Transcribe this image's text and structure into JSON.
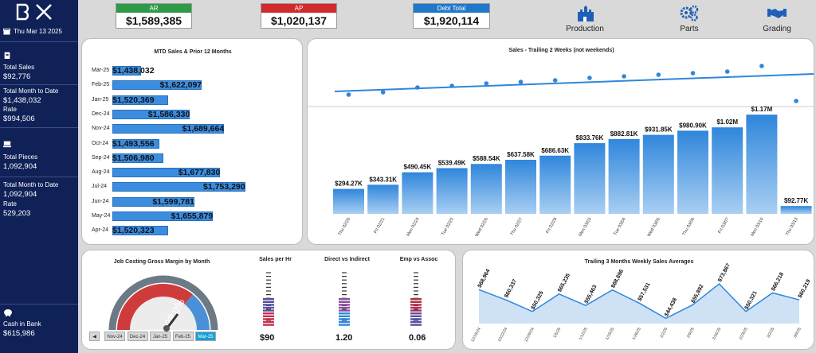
{
  "sidebar": {
    "date": "Thu Mar 13 2025",
    "total_sales_label": "Total Sales",
    "total_sales_value": "$92,776",
    "mtd_label": "Total Month to Date",
    "mtd_value": "$1,438,032",
    "rate_label": "Rate",
    "rate_value": "$994,506",
    "total_pieces_label": "Total Pieces",
    "total_pieces_value": "1,092,904",
    "pieces_mtd_label": "Total Month to Date",
    "pieces_mtd_value": "1,092,904",
    "pieces_rate_label": "Rate",
    "pieces_rate_value": "529,203",
    "cash_label": "Cash in Bank",
    "cash_value": "$615,986"
  },
  "kpis": {
    "ar_label": "AR",
    "ar_value": "$1,589,385",
    "ap_label": "AP",
    "ap_value": "$1,020,137",
    "debt_label": "Debt Total",
    "debt_value": "$1,920,114"
  },
  "nav": {
    "production": "Production",
    "parts": "Parts",
    "grading": "Grading"
  },
  "colors": {
    "sidebar": "#0f2157",
    "bar": "#3b8de0",
    "ar": "#2e9a48",
    "ap": "#d12a2a",
    "debt": "#1f78c8"
  },
  "mtd": {
    "title": "MTD Sales & Prior 12 Months",
    "rows": [
      {
        "label": "Mar-25",
        "value": 1438032,
        "text": "$1,438,032"
      },
      {
        "label": "Feb-25",
        "value": 1622097,
        "text": "$1,622,097"
      },
      {
        "label": "Jan-25",
        "value": 1520369,
        "text": "$1,520,369"
      },
      {
        "label": "Dec-24",
        "value": 1586330,
        "text": "$1,586,330"
      },
      {
        "label": "Nov-24",
        "value": 1689664,
        "text": "$1,689,664"
      },
      {
        "label": "Oct-24",
        "value": 1493556,
        "text": "$1,493,556"
      },
      {
        "label": "Sep-24",
        "value": 1506980,
        "text": "$1,506,980"
      },
      {
        "label": "Aug-24",
        "value": 1677830,
        "text": "$1,677,830"
      },
      {
        "label": "Jul-24",
        "value": 1753290,
        "text": "$1,753,290"
      },
      {
        "label": "Jun-24",
        "value": 1599781,
        "text": "$1,599,781"
      },
      {
        "label": "May-24",
        "value": 1655879,
        "text": "$1,655,879"
      },
      {
        "label": "Apr-24",
        "value": 1520323,
        "text": "$1,520,323"
      }
    ]
  },
  "trailing": {
    "title": "Sales - Trailing 2 Weeks (not weekends)",
    "labels": [
      "Thu 02/20",
      "Fri 02/21",
      "Mon 02/24",
      "Tue 02/25",
      "Wed 02/26",
      "Thu 02/27",
      "Fri 02/28",
      "Mon 03/03",
      "Tue 03/04",
      "Wed 03/05",
      "Thu 03/06",
      "Fri 03/07",
      "Mon 03/10",
      "Thu 03/13"
    ],
    "values": [
      294.27,
      343.31,
      490.45,
      539.49,
      588.54,
      637.58,
      686.63,
      833.76,
      882.81,
      931.85,
      980.9,
      1020,
      1170,
      92.77
    ],
    "texts": [
      "$294.27K",
      "$343.31K",
      "$490.45K",
      "$539.49K",
      "$588.54K",
      "$637.58K",
      "$686.63K",
      "$833.76K",
      "$882.81K",
      "$931.85K",
      "$980.90K",
      "$1.02M",
      "$1.17M",
      "$92.77K"
    ]
  },
  "gauge": {
    "title": "Job Costing Gross Margin by Month",
    "value_text": "28.0%",
    "value": 28.0,
    "tabs": [
      "Nov-24",
      "Dec-24",
      "Jan-25",
      "Feb-25",
      "Mar-25"
    ],
    "selected": "Mar-25"
  },
  "sales_hr": {
    "title": "Sales per Hr",
    "value": "$90"
  },
  "direct": {
    "title": "Direct vs Indirect",
    "value": "1.20"
  },
  "emp": {
    "title": "Emp vs Assoc",
    "value": "0.06"
  },
  "weekly": {
    "title": "Trailing 3 Months Weekly Sales Averages",
    "labels": [
      "12/15/24",
      "12/22/24",
      "12/29/24",
      "1/5/25",
      "1/12/25",
      "1/19/25",
      "1/26/25",
      "2/2/25",
      "2/9/25",
      "2/16/25",
      "2/23/25",
      "3/2/25",
      "3/9/25"
    ],
    "values": [
      68964,
      60337,
      50325,
      65235,
      55463,
      68696,
      57531,
      44438,
      55892,
      73867,
      50321,
      66218,
      60219
    ],
    "texts": [
      "$68,964",
      "$60,337",
      "$50,325",
      "$65,235",
      "$55,463",
      "$68,696",
      "$57,531",
      "$44,438",
      "$55,892",
      "$73,867",
      "$50,321",
      "$66,218",
      "$60,219"
    ]
  },
  "chart_data": [
    {
      "type": "bar",
      "title": "MTD Sales & Prior 12 Months",
      "categories": [
        "Mar-25",
        "Feb-25",
        "Jan-25",
        "Dec-24",
        "Nov-24",
        "Oct-24",
        "Sep-24",
        "Aug-24",
        "Jul-24",
        "Jun-24",
        "May-24",
        "Apr-24"
      ],
      "values": [
        1438032,
        1622097,
        1520369,
        1586330,
        1689664,
        1493556,
        1506980,
        1677830,
        1753290,
        1599781,
        1655879,
        1520323
      ]
    },
    {
      "type": "bar",
      "title": "Sales - Trailing 2 Weeks (not weekends)",
      "categories": [
        "Thu 02/20",
        "Fri 02/21",
        "Mon 02/24",
        "Tue 02/25",
        "Wed 02/26",
        "Thu 02/27",
        "Fri 02/28",
        "Mon 03/03",
        "Tue 03/04",
        "Wed 03/05",
        "Thu 03/06",
        "Fri 03/07",
        "Mon 03/10",
        "Thu 03/13"
      ],
      "values": [
        294270,
        343310,
        490450,
        539490,
        588540,
        637580,
        686630,
        833760,
        882810,
        931850,
        980900,
        1020000,
        1170000,
        92770
      ]
    },
    {
      "type": "area",
      "title": "Trailing 3 Months Weekly Sales Averages",
      "x": [
        "12/15/24",
        "12/22/24",
        "12/29/24",
        "1/5/25",
        "1/12/25",
        "1/19/25",
        "1/26/25",
        "2/2/25",
        "2/9/25",
        "2/16/25",
        "2/23/25",
        "3/2/25",
        "3/9/25"
      ],
      "values": [
        68964,
        60337,
        50325,
        65235,
        55463,
        68696,
        57531,
        44438,
        55892,
        73867,
        50321,
        66218,
        60219
      ]
    }
  ]
}
